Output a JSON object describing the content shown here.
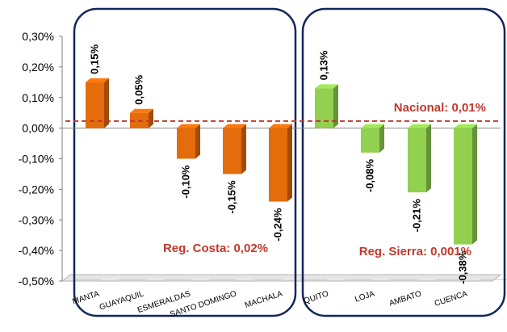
{
  "chart_data": {
    "type": "bar",
    "categories": [
      "MANTA",
      "GUAYAQUIL",
      "ESMERALDAS",
      "SANTO DOMINGO",
      "MACHALA",
      "QUITO",
      "LOJA",
      "AMBATO",
      "CUENCA"
    ],
    "values": [
      0.15,
      0.05,
      -0.1,
      -0.15,
      -0.24,
      0.13,
      -0.08,
      -0.21,
      -0.38
    ],
    "value_labels": [
      "0,15%",
      "0,05%",
      "-0,10%",
      "-0,15%",
      "-0,24%",
      "0,13%",
      "-0,08%",
      "-0,21%",
      "-0,38%"
    ],
    "groups": [
      {
        "label": "Reg. Costa: 0,02%",
        "value": 0.02,
        "categories": [
          "MANTA",
          "GUAYAQUIL",
          "ESMERALDAS",
          "SANTO DOMINGO",
          "MACHALA"
        ],
        "color": "#E46C0A"
      },
      {
        "label": "Reg. Sierra: 0,001%",
        "value": 0.001,
        "categories": [
          "QUITO",
          "LOJA",
          "AMBATO",
          "CUENCA"
        ],
        "color": "#92D050"
      }
    ],
    "reference_line": {
      "label": "Nacional: 0,01%",
      "value": 0.01,
      "color": "#C0392B",
      "style": "dashed"
    },
    "yticks": [
      "0,30%",
      "0,20%",
      "0,10%",
      "0,00%",
      "-0,10%",
      "-0,20%",
      "-0,30%",
      "-0,40%",
      "-0,50%"
    ],
    "ylim": [
      -0.5,
      0.3
    ],
    "grid": false,
    "legend": "none"
  }
}
